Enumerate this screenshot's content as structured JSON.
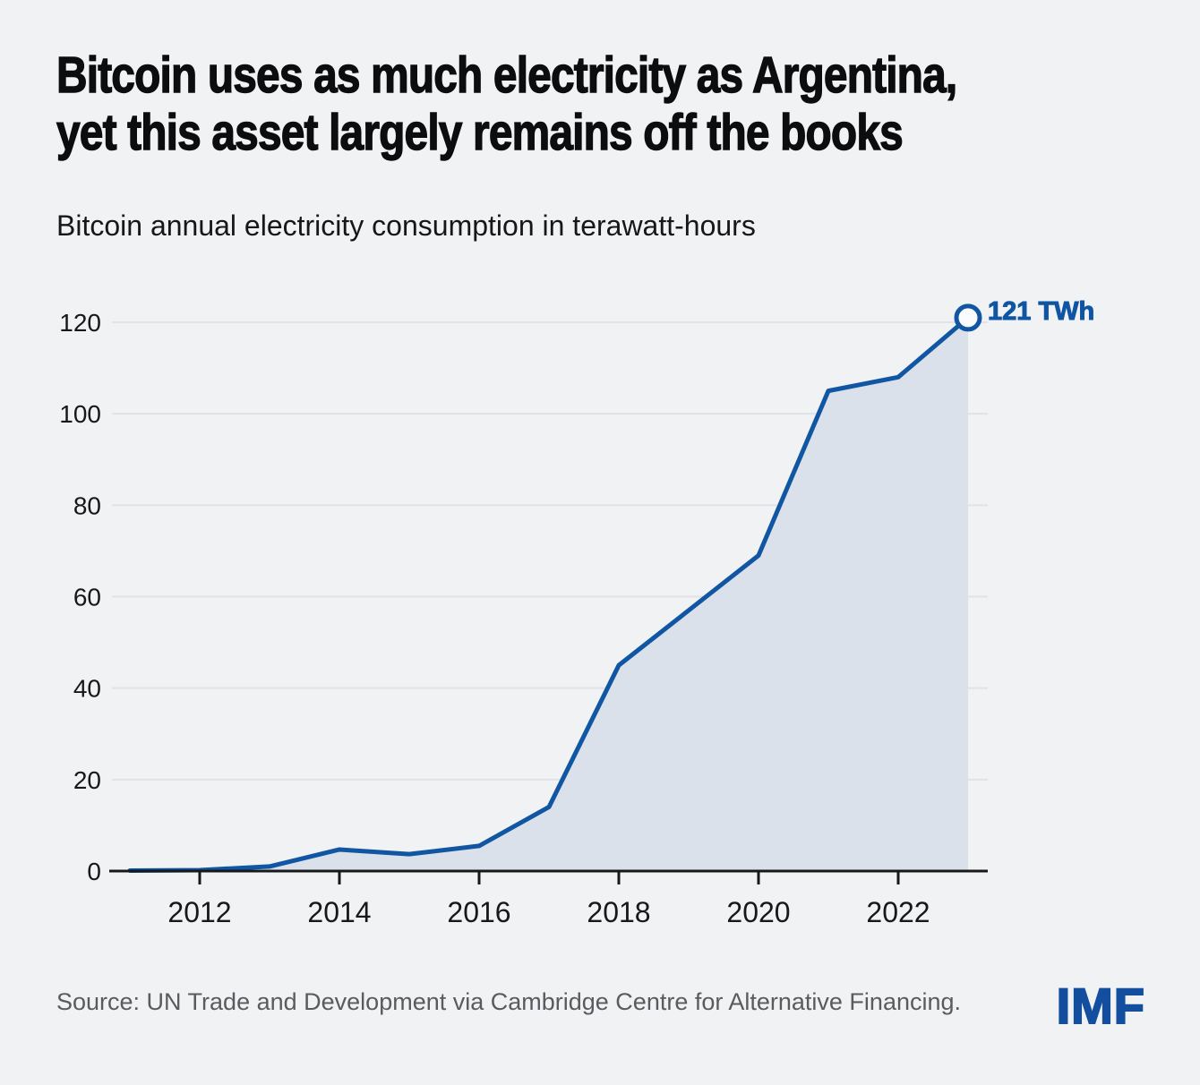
{
  "header": {
    "title_line1": "Bitcoin uses as much electricity as Argentina,",
    "title_line2": "yet this asset largely remains off the books",
    "subtitle": "Bitcoin annual electricity consumption in terawatt-hours"
  },
  "chart_data": {
    "type": "area",
    "title": "Bitcoin annual electricity consumption in terawatt-hours",
    "x": [
      2011,
      2012,
      2013,
      2014,
      2015,
      2016,
      2017,
      2018,
      2019,
      2020,
      2021,
      2022,
      2023
    ],
    "values": [
      0.1,
      0.2,
      1,
      4.7,
      3.7,
      5.5,
      14,
      45,
      57,
      69,
      105,
      108,
      121
    ],
    "end_label": "121 TWh",
    "xticks": [
      2012,
      2014,
      2016,
      2018,
      2020,
      2022
    ],
    "yticks": [
      0,
      20,
      40,
      60,
      80,
      100,
      120
    ],
    "ylim": [
      0,
      128
    ],
    "xlabel": "",
    "ylabel": "",
    "grid": "horizontal",
    "legend": "none",
    "line_color": "#1156a3",
    "fill_color": "#dbe1ea",
    "label_color": "#0f55a3",
    "axis_color": "#17181a",
    "grid_color": "#dfe2e6",
    "marker_fill": "#fafbfc"
  },
  "footer": {
    "source": "Source: UN Trade and Development via Cambridge Centre for Alternative Financing.",
    "logo": "IMF"
  }
}
